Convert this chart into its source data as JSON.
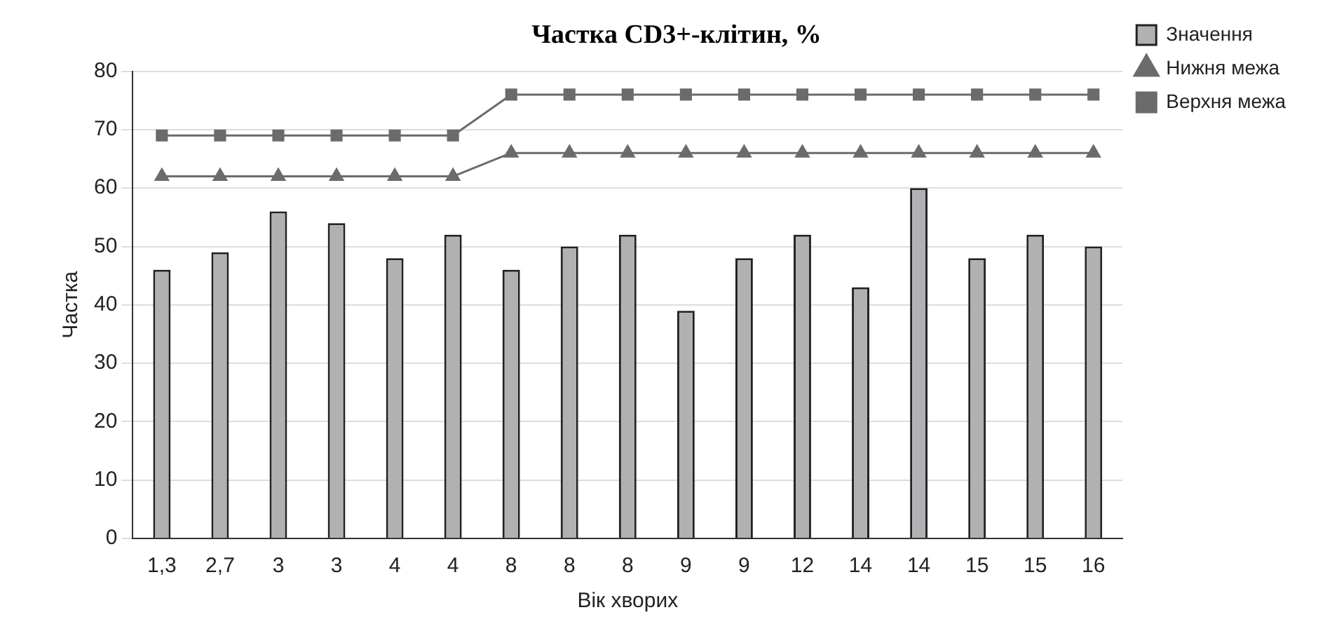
{
  "chart_data": {
    "type": "bar",
    "title": "Частка CD3+-клітин, %",
    "xlabel": "Вік хворих",
    "ylabel": "Частка",
    "categories": [
      "1,3",
      "2,7",
      "3",
      "3",
      "4",
      "4",
      "8",
      "8",
      "8",
      "9",
      "9",
      "12",
      "14",
      "14",
      "15",
      "15",
      "16"
    ],
    "series": [
      {
        "name": "Значення",
        "color": "#b1b1b4",
        "values": [
          46,
          49,
          56,
          54,
          48,
          52,
          46,
          50,
          52,
          39,
          48,
          52,
          43,
          60,
          48,
          52,
          50
        ]
      },
      {
        "name": "Нижня межа",
        "type": "line",
        "color": "#6b6b6b",
        "marker": "triangle",
        "values": [
          62,
          62,
          62,
          62,
          62,
          62,
          66,
          66,
          66,
          66,
          66,
          66,
          66,
          66,
          66,
          66,
          66
        ]
      },
      {
        "name": "Верхня межа",
        "type": "line",
        "color": "#6b6b6b",
        "marker": "square",
        "values": [
          69,
          69,
          69,
          69,
          69,
          69,
          76,
          76,
          76,
          76,
          76,
          76,
          76,
          76,
          76,
          76,
          76
        ]
      }
    ],
    "ylim": [
      0,
      80
    ],
    "yticks": [
      0,
      10,
      20,
      30,
      40,
      50,
      60,
      70,
      80
    ],
    "grid": "y",
    "legend": "top right"
  }
}
